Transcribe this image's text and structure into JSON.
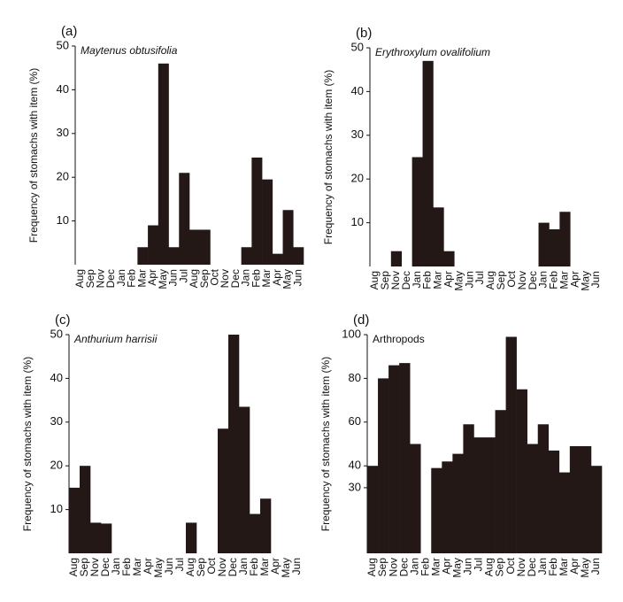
{
  "chart_data": [
    {
      "type": "bar",
      "panel_label": "(a)",
      "title": "Maytenus obtusifolia",
      "title_italic": true,
      "ylabel": "Frequency of stomachs with item (%)",
      "color": "#231815",
      "categories": [
        "Aug",
        "Sep",
        "Nov",
        "Dec",
        "Jan",
        "Feb",
        "Mar",
        "Apr",
        "May",
        "Jun",
        "Jul",
        "Aug",
        "Sep",
        "Oct",
        "Nov",
        "Dec",
        "Jan",
        "Feb",
        "Mar",
        "Apr",
        "May",
        "Jun"
      ],
      "values": [
        0,
        0,
        0,
        0,
        0,
        0,
        4,
        9,
        46,
        4,
        21,
        8,
        8,
        0,
        0,
        0,
        4,
        24.5,
        19.5,
        2.5,
        12.5,
        4
      ],
      "ylim": [
        0,
        50
      ],
      "yticks": [
        10,
        20,
        30,
        40,
        50
      ]
    },
    {
      "type": "bar",
      "panel_label": "(b)",
      "title": "Erythroxylum ovalifolium",
      "title_italic": true,
      "ylabel": "Frequency of stomachs with item (%)",
      "color": "#231815",
      "categories": [
        "Aug",
        "Sep",
        "Nov",
        "Dec",
        "Jan",
        "Feb",
        "Mar",
        "Apr",
        "May",
        "Jun",
        "Jul",
        "Aug",
        "Sep",
        "Oct",
        "Nov",
        "Dec",
        "Jan",
        "Feb",
        "Mar",
        "Apr",
        "May",
        "Jun"
      ],
      "values": [
        0,
        0,
        3.5,
        0,
        25,
        47,
        13.5,
        3.5,
        0,
        0,
        0,
        0,
        0,
        0,
        0,
        0,
        10,
        8.5,
        12.5,
        0,
        0,
        0
      ],
      "ylim": [
        0,
        50
      ],
      "yticks": [
        10,
        20,
        30,
        40,
        50
      ]
    },
    {
      "type": "bar",
      "panel_label": "(c)",
      "title": "Anthurium harrisii",
      "title_italic": true,
      "ylabel": "Frequency of stomachs with item (%)",
      "color": "#231815",
      "categories": [
        "Aug",
        "Sep",
        "Nov",
        "Dec",
        "Jan",
        "Feb",
        "Mar",
        "Apr",
        "May",
        "Jun",
        "Jul",
        "Aug",
        "Sep",
        "Oct",
        "Nov",
        "Dec",
        "Jan",
        "Feb",
        "Mar",
        "Apr",
        "May",
        "Jun"
      ],
      "values": [
        15,
        20,
        7,
        6.8,
        0,
        0,
        0,
        0,
        0,
        0,
        0,
        7,
        0,
        0,
        28.5,
        50,
        33.5,
        9,
        12.5,
        0,
        0,
        0
      ],
      "ylim": [
        0,
        50
      ],
      "yticks": [
        10,
        20,
        30,
        40,
        50
      ]
    },
    {
      "type": "bar",
      "panel_label": "(d)",
      "title": "Arthropods",
      "title_italic": false,
      "ylabel": "Frequency of stomachs with item (%)",
      "color": "#231815",
      "categories": [
        "Aug",
        "Sep",
        "Nov",
        "Dec",
        "Jan",
        "Feb",
        "Mar",
        "Apr",
        "May",
        "Jun",
        "Jul",
        "Aug",
        "Sep",
        "Oct",
        "Nov",
        "Dec",
        "Jan",
        "Feb",
        "Mar",
        "Apr",
        "May",
        "Jun"
      ],
      "values": [
        40,
        80,
        86,
        87,
        50,
        0,
        39,
        42,
        45.5,
        59,
        53,
        53,
        65.5,
        99,
        75,
        50,
        59,
        47,
        37,
        49,
        49,
        40
      ],
      "ylim": [
        0,
        100
      ],
      "yticks": [
        30,
        40,
        60,
        80,
        100
      ]
    }
  ]
}
